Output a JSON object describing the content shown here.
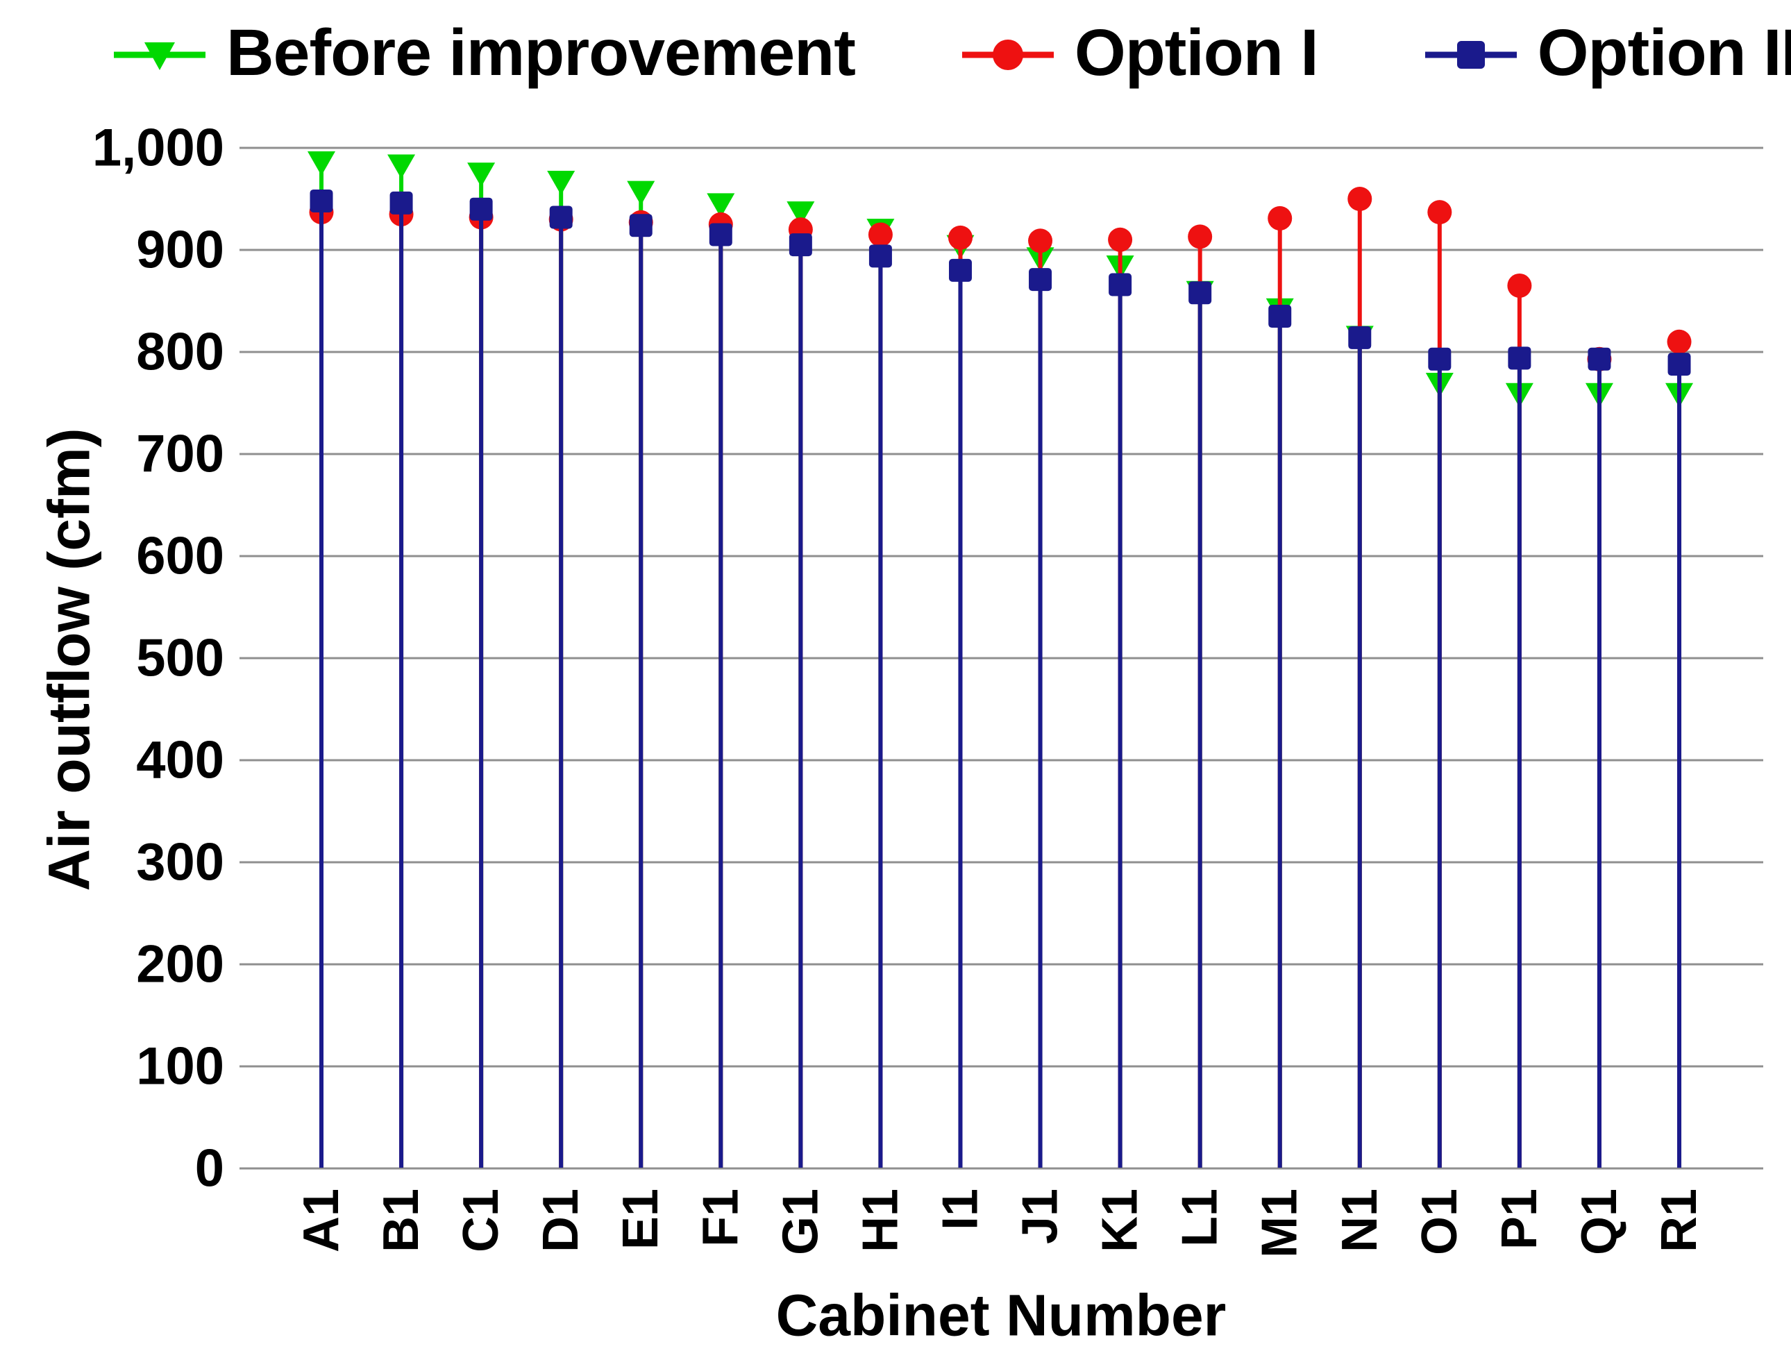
{
  "legend": {
    "items": [
      {
        "label": "Before improvement",
        "marker": "triangle-down",
        "color": "#00d800"
      },
      {
        "label": "Option I",
        "marker": "circle",
        "color": "#ee1111"
      },
      {
        "label": "Option II",
        "marker": "square",
        "color": "#1a1a8c"
      }
    ]
  },
  "y_axis": {
    "title": "Air outflow (cfm)",
    "tick_labels": [
      "0",
      "100",
      "200",
      "300",
      "400",
      "500",
      "600",
      "700",
      "800",
      "900",
      "1,000"
    ],
    "tick_values": [
      0,
      100,
      200,
      300,
      400,
      500,
      600,
      700,
      800,
      900,
      1000
    ]
  },
  "x_axis": {
    "title": "Cabinet Number"
  },
  "chart_data": {
    "type": "scatter",
    "subtype": "stem-plot",
    "title": "",
    "xlabel": "Cabinet Number",
    "ylabel": "Air outflow (cfm)",
    "ylim": [
      0,
      1000
    ],
    "grid": true,
    "legend_position": "top",
    "categories": [
      "A1",
      "B1",
      "C1",
      "D1",
      "E1",
      "F1",
      "G1",
      "H1",
      "I1",
      "J1",
      "K1",
      "L1",
      "M1",
      "N1",
      "O1",
      "P1",
      "Q1",
      "R1"
    ],
    "series": [
      {
        "name": "Before improvement",
        "marker": "triangle-down",
        "color": "#00d800",
        "values": [
          985,
          982,
          974,
          966,
          956,
          944,
          936,
          919,
          903,
          891,
          883,
          858,
          841,
          814,
          768,
          758,
          758,
          758
        ]
      },
      {
        "name": "Option I",
        "marker": "circle",
        "color": "#ee1111",
        "values": [
          937,
          935,
          932,
          930,
          927,
          925,
          920,
          915,
          912,
          909,
          910,
          913,
          931,
          950,
          937,
          865,
          793,
          810
        ]
      },
      {
        "name": "Option II",
        "marker": "square",
        "color": "#1a1a8c",
        "values": [
          948,
          946,
          940,
          932,
          924,
          915,
          905,
          894,
          880,
          871,
          866,
          858,
          835,
          814,
          793,
          794,
          793,
          788
        ]
      }
    ]
  }
}
